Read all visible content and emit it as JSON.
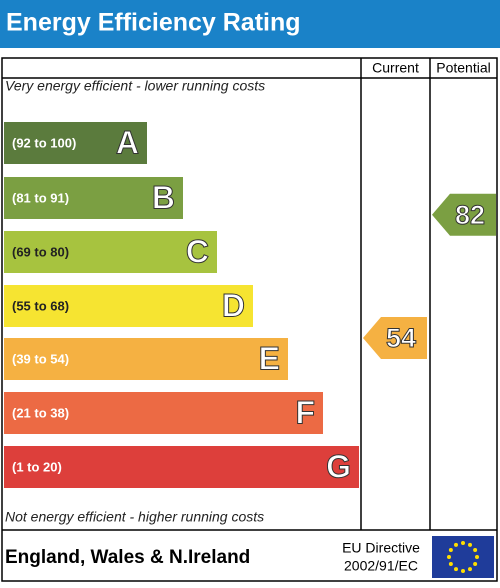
{
  "title": "Energy Efficiency Rating",
  "columns": {
    "current": "Current",
    "potential": "Potential"
  },
  "top_note": "Very energy efficient - lower running costs",
  "bottom_note": "Not energy efficient - higher running costs",
  "bands": [
    {
      "range": "(92 to 100)",
      "letter": "A",
      "color": "#5b7b3d"
    },
    {
      "range": "(81 to 91)",
      "letter": "B",
      "color": "#7b9f42"
    },
    {
      "range": "(69 to 80)",
      "letter": "C",
      "color": "#a7c33f"
    },
    {
      "range": "(55 to 68)",
      "letter": "D",
      "color": "#f6e431"
    },
    {
      "range": "(39 to 54)",
      "letter": "E",
      "color": "#f5b142"
    },
    {
      "range": "(21 to 38)",
      "letter": "F",
      "color": "#ec6a44"
    },
    {
      "range": "(1 to 20)",
      "letter": "G",
      "color": "#dd3f3b"
    }
  ],
  "current": {
    "value": 54,
    "color": "#f5b142"
  },
  "potential": {
    "value": 82,
    "color": "#7b9f42"
  },
  "footer": {
    "region": "England, Wales & N.Ireland",
    "directive": "EU Directive",
    "code": "2002/91/EC"
  }
}
